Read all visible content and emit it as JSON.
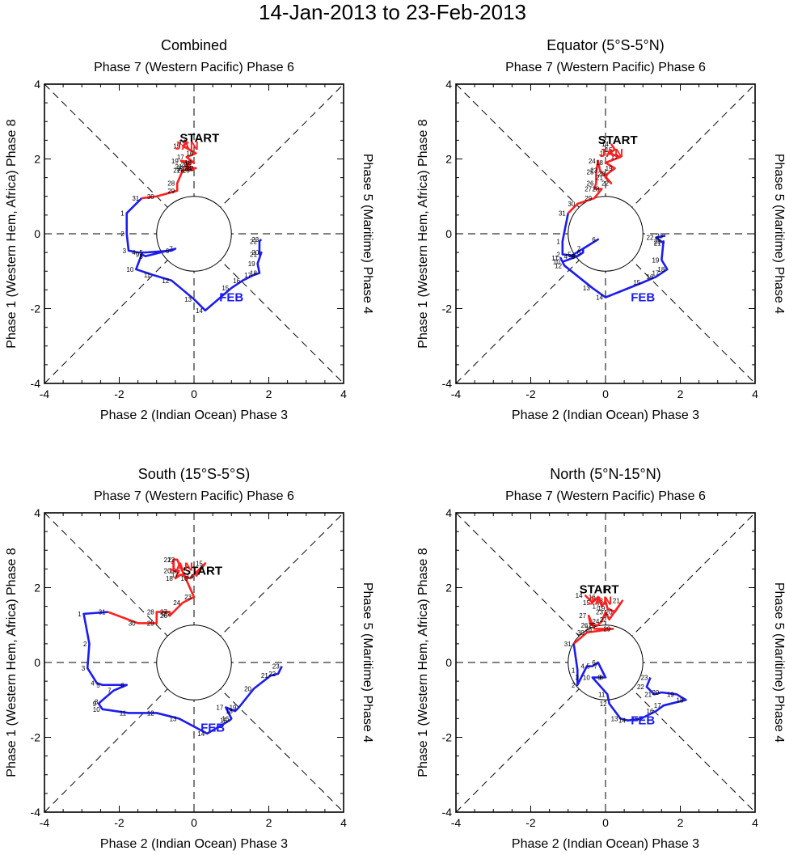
{
  "title": "14-Jan-2013 to 23-Feb-2013",
  "colors": {
    "jan": "#ff2020",
    "feb": "#1c1cf0",
    "axis": "#000000"
  },
  "labels": {
    "top": "Phase 7 (Western Pacific) Phase 6",
    "bottom": "Phase 2 (Indian Ocean) Phase 3",
    "left": "Phase 1 (Western Hem, Africa) Phase 8",
    "right": "Phase 5 (Maritime) Phase 4",
    "start": "START",
    "jan": "JAN",
    "feb": "FEB"
  },
  "chart_data": [
    {
      "type": "line",
      "title": "Combined",
      "xlim": [
        -4,
        4
      ],
      "ylim": [
        -4,
        4
      ],
      "xticks": [
        "-4",
        "-2",
        "0",
        "2",
        "4"
      ],
      "yticks": [
        "-4",
        "-2",
        "0",
        "2",
        "4"
      ],
      "series": [
        {
          "name": "JAN",
          "days": [
            "14",
            "15",
            "16",
            "17",
            "18",
            "19",
            "20",
            "21",
            "22",
            "23",
            "24",
            "25",
            "26",
            "27",
            "28",
            "29",
            "30",
            "31"
          ],
          "x": [
            -0.15,
            -0.3,
            0.05,
            -0.2,
            0.0,
            -0.35,
            -0.1,
            -0.25,
            0.05,
            -0.2,
            0.0,
            -0.05,
            -0.2,
            -0.3,
            -0.45,
            -0.45,
            -1.0,
            -1.4
          ],
          "y": [
            2.45,
            2.35,
            2.15,
            2.05,
            1.9,
            1.95,
            1.85,
            1.8,
            1.75,
            1.75,
            1.75,
            1.7,
            1.7,
            1.7,
            1.35,
            1.15,
            1.0,
            0.95
          ]
        },
        {
          "name": "FEB",
          "days": [
            "1",
            "2",
            "3",
            "4",
            "5",
            "6",
            "7",
            "8",
            "9",
            "10",
            "11",
            "12",
            "13",
            "14",
            "15",
            "16",
            "17",
            "18",
            "19",
            "20",
            "21",
            "22",
            "23"
          ],
          "x": [
            -1.8,
            -1.8,
            -1.75,
            -1.5,
            -1.3,
            -0.6,
            -0.5,
            -1.3,
            -1.4,
            -1.55,
            -1.1,
            -0.6,
            0.0,
            0.3,
            1.0,
            1.3,
            1.6,
            1.75,
            1.7,
            1.8,
            1.75,
            1.75,
            1.8
          ],
          "y": [
            0.55,
            0.0,
            -0.45,
            -0.5,
            -0.5,
            -0.45,
            -0.4,
            -0.6,
            -0.55,
            -0.95,
            -1.1,
            -1.25,
            -1.75,
            -2.05,
            -1.45,
            -1.25,
            -1.1,
            -1.05,
            -0.8,
            -0.5,
            -0.55,
            -0.2,
            -0.15
          ]
        }
      ],
      "jan_label": [
        -0.2,
        2.25
      ],
      "feb_label": [
        1.0,
        -1.8
      ],
      "start_label": [
        -0.38,
        2.45
      ]
    },
    {
      "type": "line",
      "title": "Equator (5°S-5°N)",
      "xlim": [
        -4,
        4
      ],
      "ylim": [
        -4,
        4
      ],
      "xticks": [
        "-4",
        "-2",
        "0",
        "2",
        "4"
      ],
      "yticks": [
        "-4",
        "-2",
        "0",
        "2",
        "4"
      ],
      "series": [
        {
          "name": "JAN",
          "days": [
            "14",
            "15",
            "16",
            "17",
            "18",
            "19",
            "20",
            "21",
            "22",
            "23",
            "24",
            "25",
            "26",
            "27",
            "28",
            "29",
            "30",
            "31"
          ],
          "x": [
            0.15,
            0.25,
            0.1,
            0.4,
            0.0,
            0.25,
            0.05,
            0.0,
            0.15,
            -0.15,
            -0.2,
            -0.25,
            -0.25,
            -0.3,
            -0.1,
            -0.3,
            -0.75,
            -1.0
          ],
          "y": [
            2.4,
            2.25,
            2.15,
            2.05,
            1.9,
            1.75,
            1.6,
            1.5,
            1.35,
            1.7,
            1.95,
            1.65,
            1.35,
            1.2,
            1.2,
            0.95,
            0.8,
            0.55
          ]
        },
        {
          "name": "FEB",
          "days": [
            "1",
            "2",
            "3",
            "4",
            "5",
            "6",
            "7",
            "8",
            "9",
            "10",
            "11",
            "12",
            "13",
            "14",
            "15",
            "16",
            "17",
            "18",
            "19",
            "20",
            "21",
            "22",
            "23"
          ],
          "x": [
            -1.15,
            -1.15,
            -0.75,
            -0.95,
            -0.85,
            -0.2,
            -0.6,
            -0.6,
            -0.75,
            -1.15,
            -1.2,
            -1.1,
            -0.35,
            0.0,
            1.0,
            1.35,
            1.5,
            1.65,
            1.5,
            1.55,
            1.55,
            1.35,
            1.6
          ],
          "y": [
            -0.2,
            -0.55,
            -0.6,
            -0.6,
            -0.55,
            -0.15,
            -0.4,
            -0.5,
            -0.6,
            -0.75,
            -0.65,
            -0.85,
            -1.45,
            -1.7,
            -1.3,
            -1.15,
            -1.05,
            -0.95,
            -0.7,
            -0.2,
            -0.25,
            -0.1,
            -0.05
          ]
        }
      ],
      "jan_label": [
        0.15,
        2.05
      ],
      "feb_label": [
        1.0,
        -1.8
      ],
      "start_label": [
        -0.2,
        2.4
      ]
    },
    {
      "type": "line",
      "title": "South (15°S-5°S)",
      "xlim": [
        -4,
        4
      ],
      "ylim": [
        -4,
        4
      ],
      "xticks": [
        "-4",
        "-2",
        "0",
        "2",
        "4"
      ],
      "yticks": [
        "-4",
        "-2",
        "0",
        "2",
        "4"
      ],
      "series": [
        {
          "name": "JAN",
          "days": [
            "14",
            "15",
            "16",
            "17",
            "18",
            "19",
            "20",
            "21",
            "22",
            "23",
            "24",
            "25",
            "26",
            "27",
            "28",
            "29",
            "30",
            "31"
          ],
          "x": [
            0.05,
            0.3,
            -0.1,
            -0.35,
            -0.5,
            -0.4,
            -0.55,
            -0.55,
            -0.45,
            0.0,
            -0.3,
            -0.6,
            -0.65,
            -0.65,
            -1.0,
            -1.0,
            -1.5,
            -2.3
          ],
          "y": [
            2.3,
            2.65,
            2.25,
            2.35,
            2.25,
            2.45,
            2.45,
            2.75,
            2.75,
            1.75,
            1.6,
            1.3,
            1.25,
            1.35,
            1.35,
            1.05,
            1.05,
            1.35
          ]
        },
        {
          "name": "FEB",
          "days": [
            "1",
            "2",
            "3",
            "4",
            "5",
            "6",
            "7",
            "8",
            "9",
            "10",
            "11",
            "12",
            "13",
            "14",
            "15",
            "16",
            "17",
            "18",
            "19",
            "20",
            "21",
            "22",
            "23"
          ],
          "x": [
            -2.95,
            -2.8,
            -2.85,
            -2.6,
            -2.45,
            -1.8,
            -2.15,
            -2.5,
            -2.55,
            -2.45,
            -1.75,
            -1.0,
            -0.4,
            0.35,
            0.95,
            1.0,
            0.85,
            1.1,
            1.2,
            1.6,
            2.05,
            2.25,
            2.35
          ],
          "y": [
            1.3,
            0.5,
            -0.15,
            -0.55,
            -0.6,
            -0.6,
            -0.75,
            -1.05,
            -1.1,
            -1.25,
            -1.35,
            -1.35,
            -1.5,
            -1.9,
            -1.55,
            -1.5,
            -1.2,
            -1.3,
            -1.2,
            -0.7,
            -0.35,
            -0.3,
            -0.1
          ]
        }
      ],
      "jan_label": [
        -0.35,
        2.45
      ],
      "feb_label": [
        0.5,
        -1.85
      ],
      "start_label": [
        -0.3,
        2.35
      ]
    },
    {
      "type": "line",
      "title": "North (5°N-15°N)",
      "xlim": [
        -4,
        4
      ],
      "ylim": [
        -4,
        4
      ],
      "xticks": [
        "-4",
        "-2",
        "0",
        "2",
        "4"
      ],
      "yticks": [
        "-4",
        "-2",
        "0",
        "2",
        "4"
      ],
      "series": [
        {
          "name": "JAN",
          "days": [
            "14",
            "15",
            "16",
            "17",
            "18",
            "19",
            "20",
            "21",
            "22",
            "23",
            "24",
            "25",
            "26",
            "27",
            "28",
            "29",
            "30",
            "31"
          ],
          "x": [
            -0.55,
            -0.35,
            -0.2,
            -0.1,
            0.0,
            0.05,
            0.25,
            0.45,
            0.1,
            0.0,
            -0.1,
            -0.2,
            -0.4,
            -0.45,
            -0.3,
            0.2,
            -0.5,
            -0.85
          ],
          "y": [
            1.8,
            1.6,
            1.75,
            1.5,
            1.65,
            1.45,
            1.35,
            1.65,
            1.15,
            1.35,
            1.1,
            1.0,
            1.0,
            1.25,
            0.9,
            0.9,
            0.8,
            0.5
          ]
        },
        {
          "name": "FEB",
          "days": [
            "1",
            "2",
            "3",
            "4",
            "5",
            "6",
            "7",
            "8",
            "9",
            "10",
            "11",
            "12",
            "13",
            "14",
            "15",
            "16",
            "17",
            "18",
            "19",
            "20",
            "21",
            "22",
            "23"
          ],
          "x": [
            -0.75,
            -0.75,
            -0.65,
            -0.5,
            -0.35,
            -0.2,
            -0.15,
            0.0,
            -0.05,
            -0.35,
            0.05,
            0.1,
            0.4,
            0.6,
            0.95,
            1.35,
            1.55,
            2.15,
            1.9,
            1.5,
            1.3,
            1.1,
            1.2
          ],
          "y": [
            -0.2,
            -0.6,
            -0.4,
            -0.1,
            -0.1,
            0.0,
            -0.1,
            -0.4,
            -0.4,
            -0.4,
            -0.85,
            -1.1,
            -1.5,
            -1.55,
            -1.5,
            -1.3,
            -1.15,
            -1.0,
            -0.85,
            -0.8,
            -0.85,
            -0.65,
            -0.4
          ]
        }
      ],
      "jan_label": [
        -0.15,
        1.55
      ],
      "feb_label": [
        1.0,
        -1.65
      ],
      "start_label": [
        -0.7,
        1.85
      ]
    }
  ]
}
